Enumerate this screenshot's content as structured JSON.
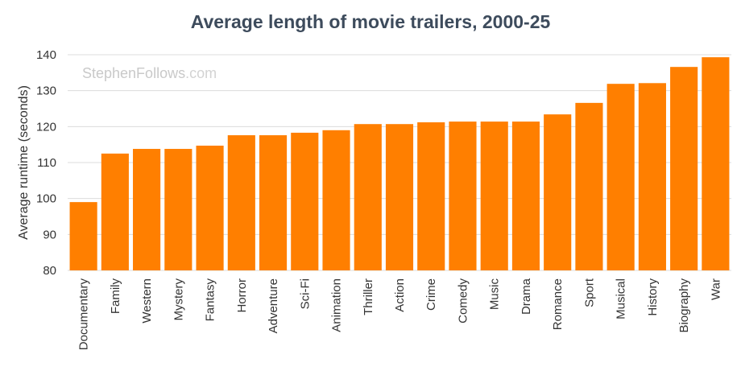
{
  "chart_data": {
    "type": "bar",
    "title": "Average length of movie trailers, 2000-25",
    "ylabel": "Average runtime (seconds)",
    "xlabel": "",
    "ylim": [
      80,
      140
    ],
    "yticks": [
      80,
      90,
      100,
      110,
      120,
      130,
      140
    ],
    "grid": true,
    "bar_color": "#ff7f00",
    "categories": [
      "Documentary",
      "Family",
      "Western",
      "Mystery",
      "Fantasy",
      "Horror",
      "Adventure",
      "Sci-Fi",
      "Animation",
      "Thriller",
      "Action",
      "Crime",
      "Comedy",
      "Music",
      "Drama",
      "Romance",
      "Sport",
      "Musical",
      "History",
      "Biography",
      "War"
    ],
    "values": [
      99,
      112.5,
      113.8,
      113.8,
      114.7,
      117.6,
      117.6,
      118.3,
      119,
      120.7,
      120.7,
      121.2,
      121.4,
      121.4,
      121.4,
      123.4,
      126.6,
      131.9,
      132.1,
      136.6,
      139.3
    ]
  },
  "watermark": {
    "name": "StephenFollows",
    "suffix": ".com"
  }
}
